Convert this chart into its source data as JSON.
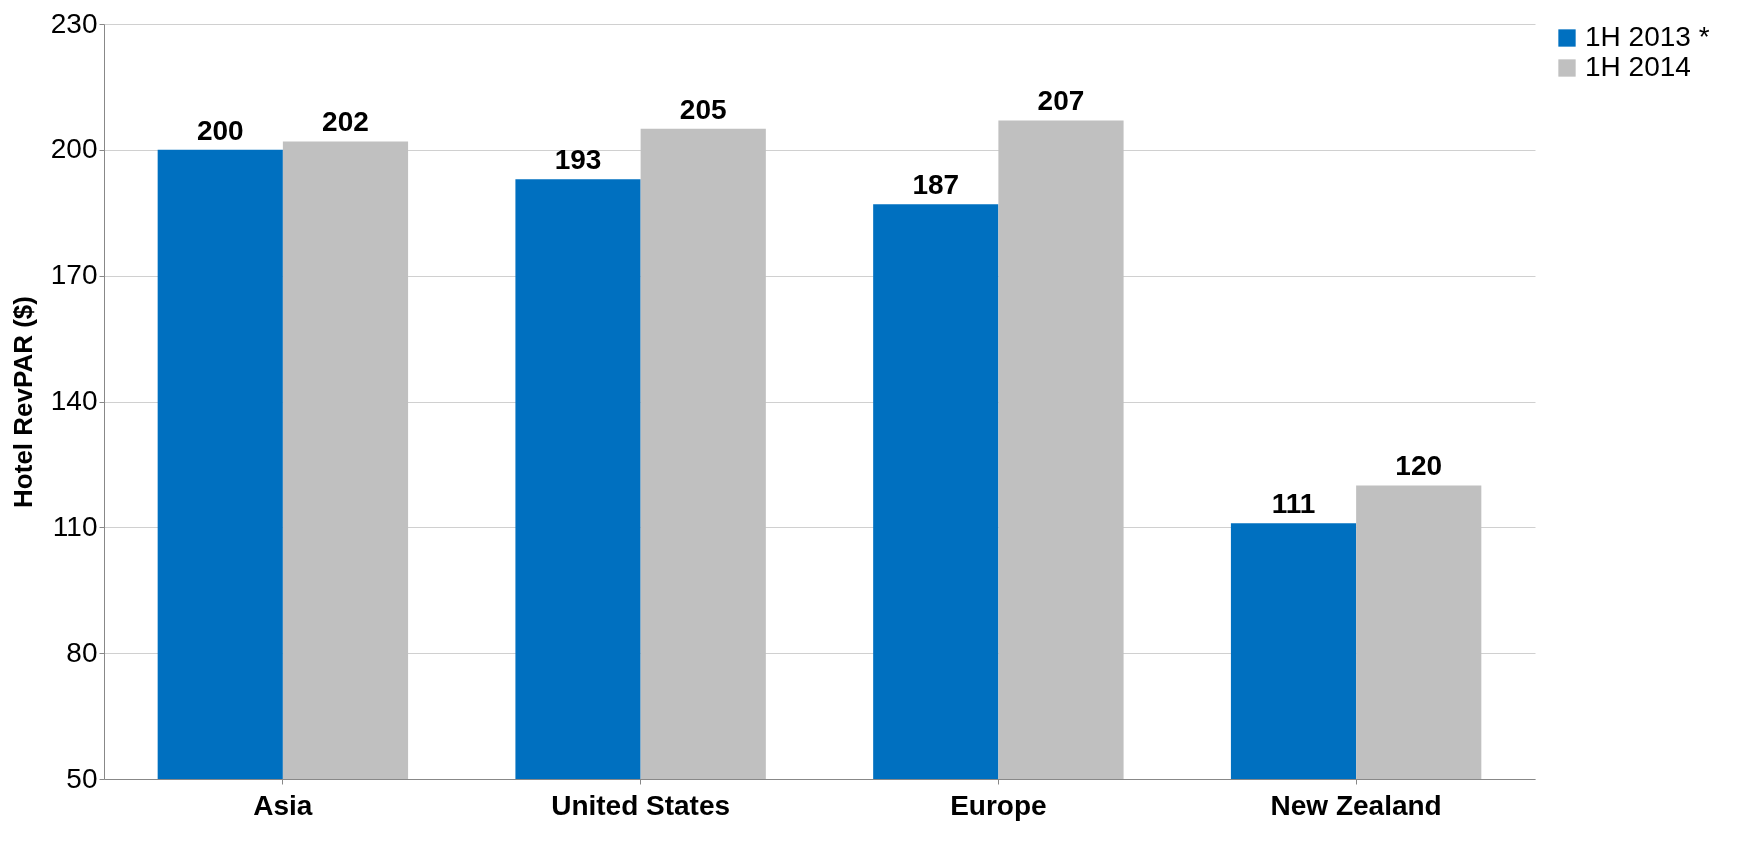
{
  "chart_data": {
    "type": "bar",
    "ylabel": "Hotel RevPAR ($)",
    "categories": [
      "Asia",
      "United States",
      "Europe",
      "New Zealand"
    ],
    "series": [
      {
        "name": "1H 2013 *",
        "color": "#0070c0",
        "values": [
          200,
          193,
          187,
          111
        ]
      },
      {
        "name": "1H 2014",
        "color": "#c0c0c0",
        "values": [
          202,
          205,
          207,
          120
        ]
      }
    ],
    "ylim": [
      50,
      230
    ],
    "yticks": [
      50,
      80,
      110,
      140,
      170,
      200,
      230
    ],
    "grid": "y",
    "legend": "right",
    "data_labels": true
  }
}
